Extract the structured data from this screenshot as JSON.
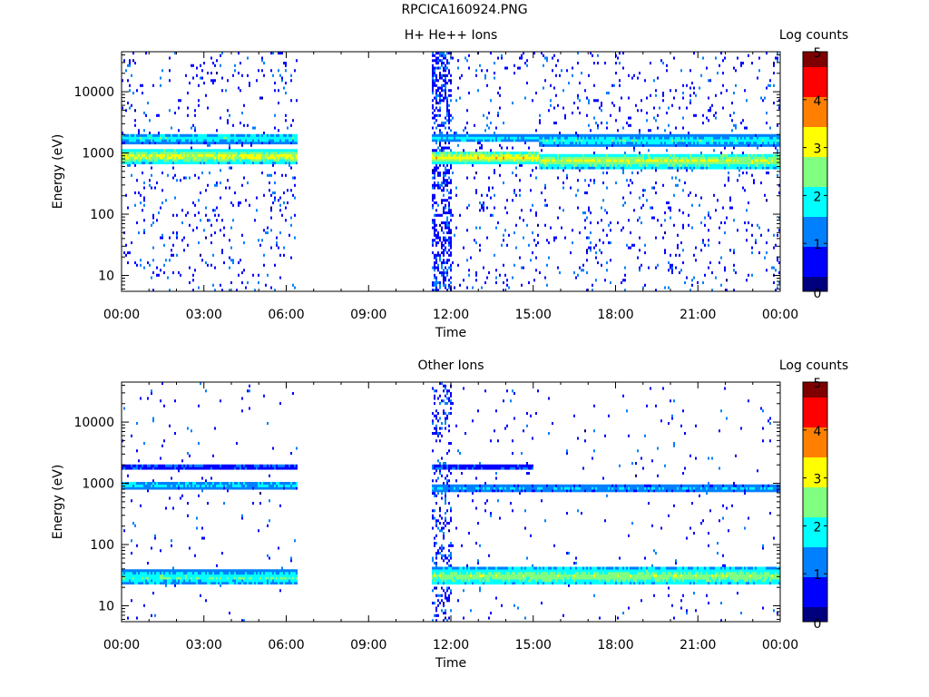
{
  "figure": {
    "title": "RPCICA160924.PNG"
  },
  "colormap": [
    "#00007f",
    "#0000ff",
    "#0080ff",
    "#00ffff",
    "#80ff80",
    "#ffff00",
    "#ff8000",
    "#ff0000",
    "#7f0000"
  ],
  "chart_data": [
    {
      "type": "heatmap",
      "title": "H+ He++ Ions",
      "xlabel": "Time",
      "ylabel": "Energy (eV)",
      "yscale": "log",
      "ylim": [
        5.5,
        45000
      ],
      "xlim": [
        0,
        24
      ],
      "xticks": [
        0,
        3,
        6,
        9,
        12,
        15,
        18,
        21,
        24
      ],
      "xticklabels": [
        "00:00",
        "03:00",
        "06:00",
        "09:00",
        "12:00",
        "15:00",
        "18:00",
        "21:00",
        "00:00"
      ],
      "yticks": [
        10,
        100,
        1000,
        10000
      ],
      "yticklabels": [
        "10",
        "100",
        "1000",
        "10000"
      ],
      "colorbar": {
        "label": "Log counts",
        "range": [
          0,
          5
        ],
        "ticks": [
          "0",
          "1",
          "2",
          "3",
          "4",
          "5"
        ]
      },
      "data_gaps": [
        [
          6.35,
          11.3
        ]
      ],
      "bands": [
        {
          "start": 0,
          "end": 6.35,
          "energy": [
            680,
            1150
          ],
          "intensity": 3.1
        },
        {
          "start": 0,
          "end": 6.35,
          "energy": [
            1450,
            2100
          ],
          "intensity": 2.0
        },
        {
          "start": 11.3,
          "end": 15.2,
          "energy": [
            680,
            1050
          ],
          "intensity": 3.3
        },
        {
          "start": 15.2,
          "end": 24,
          "energy": [
            560,
            1000
          ],
          "intensity": 2.9
        },
        {
          "start": 11.3,
          "end": 15.2,
          "energy": [
            1500,
            2050
          ],
          "intensity": 1.8
        },
        {
          "start": 15.2,
          "end": 24,
          "energy": [
            1300,
            2000
          ],
          "intensity": 2.0
        }
      ],
      "background_density": 0.05,
      "burst": {
        "start": 11.3,
        "end": 12.0,
        "density": 0.45
      }
    },
    {
      "type": "heatmap",
      "title": "Other Ions",
      "xlabel": "Time",
      "ylabel": "Energy (eV)",
      "yscale": "log",
      "ylim": [
        5.5,
        45000
      ],
      "xlim": [
        0,
        24
      ],
      "xticks": [
        0,
        3,
        6,
        9,
        12,
        15,
        18,
        21,
        24
      ],
      "xticklabels": [
        "00:00",
        "03:00",
        "06:00",
        "09:00",
        "12:00",
        "15:00",
        "18:00",
        "21:00",
        "00:00"
      ],
      "yticks": [
        10,
        100,
        1000,
        10000
      ],
      "yticklabels": [
        "10",
        "100",
        "1000",
        "10000"
      ],
      "colorbar": {
        "label": "Log counts",
        "range": [
          0,
          5
        ],
        "ticks": [
          "0",
          "1",
          "2",
          "3",
          "4",
          "5"
        ]
      },
      "data_gaps": [
        [
          6.35,
          11.3
        ]
      ],
      "bands": [
        {
          "start": 0,
          "end": 6.35,
          "energy": [
            800,
            1100
          ],
          "intensity": 1.8
        },
        {
          "start": 0,
          "end": 6.35,
          "energy": [
            1700,
            2100
          ],
          "intensity": 1.0
        },
        {
          "start": 0,
          "end": 6.35,
          "energy": [
            22,
            38
          ],
          "intensity": 2.2
        },
        {
          "start": 11.3,
          "end": 24,
          "energy": [
            700,
            1000
          ],
          "intensity": 1.5
        },
        {
          "start": 11.3,
          "end": 15.0,
          "energy": [
            1650,
            2000
          ],
          "intensity": 1.0
        },
        {
          "start": 11.3,
          "end": 24,
          "energy": [
            22,
            42
          ],
          "intensity": 2.7
        }
      ],
      "background_density": 0.015,
      "burst": {
        "start": 11.3,
        "end": 12.0,
        "density": 0.25
      }
    }
  ]
}
